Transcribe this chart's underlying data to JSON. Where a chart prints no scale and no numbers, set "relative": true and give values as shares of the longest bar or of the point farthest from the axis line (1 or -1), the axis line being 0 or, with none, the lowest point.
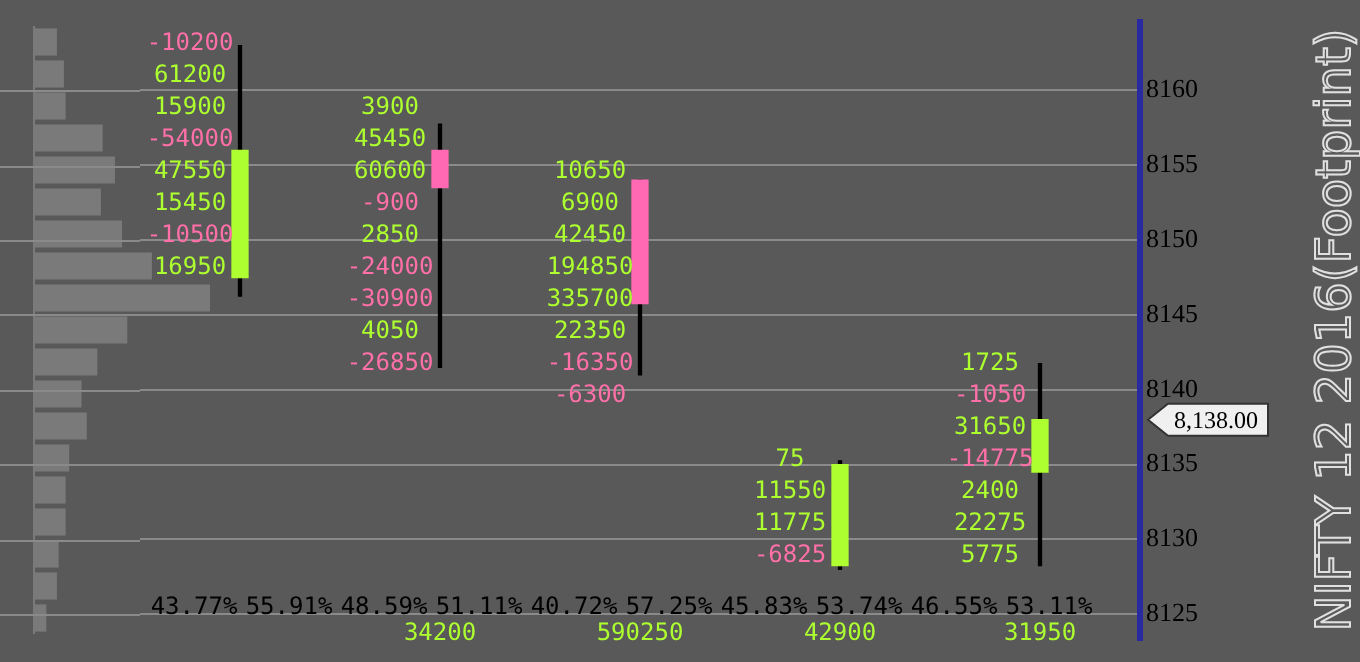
{
  "chart_data": [
    {
      "type": "bar",
      "orientation": "horizontal",
      "relative": true,
      "color": "#7a7a7a",
      "categories": [
        null,
        null,
        null,
        null,
        null,
        null,
        null,
        null,
        null,
        null,
        null,
        null,
        null,
        null,
        null,
        null,
        null,
        null,
        null
      ],
      "values": [
        0.13,
        0.17,
        0.18,
        0.39,
        0.46,
        0.38,
        0.5,
        0.67,
        1,
        0.53,
        0.36,
        0.27,
        0.3,
        0.2,
        0.18,
        0.18,
        0.14,
        0.13,
        0.07
      ]
    },
    {
      "type": "candlestick",
      "categories": [
        null,
        null,
        null,
        null,
        null
      ],
      "ylim": [
        8123.25,
        8164.6
      ],
      "yticks": [
        8125,
        8130,
        8135,
        8140,
        8145,
        8150,
        8155,
        8160
      ],
      "grid": "y",
      "ohlc": [
        [
          8147.5,
          8163,
          8146.25,
          8156
        ],
        [
          8156,
          8157.75,
          8141.5,
          8153.5
        ],
        [
          8154,
          8154,
          8141,
          8145.75
        ],
        [
          8128.25,
          8135.25,
          8128,
          8135
        ],
        [
          8134.5,
          8141.75,
          8128.25,
          8138
        ]
      ],
      "colors": [
        "#adff2f",
        "#ff69b4",
        "#ff69b4",
        "#adff2f",
        "#adff2f"
      ],
      "annotations": [
        "8,138.00"
      ]
    },
    {
      "type": "other",
      "annotations": [
        "-10200",
        "61200",
        "15900",
        "-54000",
        "47550",
        "15450",
        "-10500",
        "16950"
      ],
      "colors": [
        "#ff6fa8",
        "#adff2f",
        "#adff2f",
        "#ff6fa8",
        "#adff2f",
        "#adff2f",
        "#ff6fa8",
        "#adff2f"
      ]
    },
    {
      "type": "other",
      "annotations": [
        "3900",
        "45450",
        "60600",
        "-900",
        "2850",
        "-24000",
        "-30900",
        "4050",
        "-26850"
      ],
      "colors": [
        "#adff2f",
        "#adff2f",
        "#adff2f",
        "#ff6fa8",
        "#adff2f",
        "#ff6fa8",
        "#ff6fa8",
        "#adff2f",
        "#ff6fa8"
      ]
    },
    {
      "type": "other",
      "annotations": [
        "10650",
        "6900",
        "42450",
        "194850",
        "335700",
        "22350",
        "-16350",
        "-6300"
      ],
      "colors": [
        "#adff2f",
        "#adff2f",
        "#adff2f",
        "#adff2f",
        "#adff2f",
        "#adff2f",
        "#ff6fa8",
        "#ff6fa8"
      ]
    },
    {
      "type": "other",
      "annotations": [
        "75",
        "11550",
        "11775",
        "-6825"
      ],
      "colors": [
        "#adff2f",
        "#adff2f",
        "#adff2f",
        "#ff6fa8"
      ]
    },
    {
      "type": "other",
      "annotations": [
        "1725",
        "-1050",
        "31650",
        "-14775",
        "2400",
        "22275",
        "5775"
      ],
      "colors": [
        "#adff2f",
        "#ff6fa8",
        "#adff2f",
        "#ff6fa8",
        "#adff2f",
        "#adff2f",
        "#adff2f"
      ]
    },
    {
      "type": "other",
      "annotations": [
        "43.77%",
        "55.91%",
        "48.59%",
        "51.11%",
        "40.72%",
        "57.25%",
        "45.83%",
        "53.74%",
        "46.55%",
        "53.11%"
      ],
      "color": "#000000"
    },
    {
      "type": "other",
      "annotations": [
        "34200",
        "590250",
        "42900",
        "31950"
      ],
      "color": "#adff2f"
    },
    {
      "type": "other",
      "title": "NIFTY 12 2016(Footprint)"
    }
  ]
}
